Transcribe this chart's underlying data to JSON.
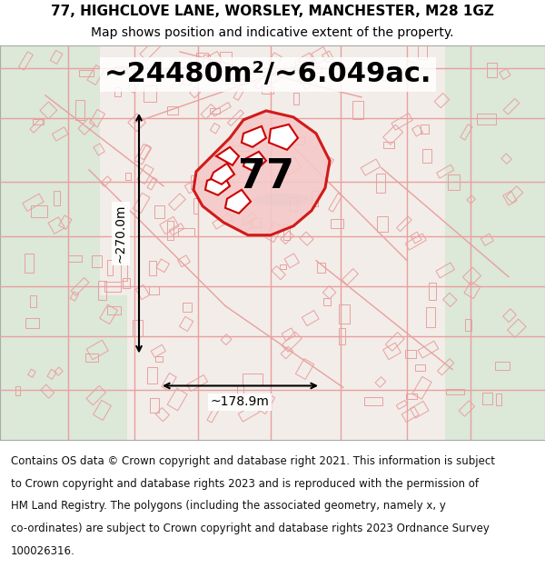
{
  "title_line1": "77, HIGHCLOVE LANE, WORSLEY, MANCHESTER, M28 1GZ",
  "title_line2": "Map shows position and indicative extent of the property.",
  "area_text": "~24480m²/~6.049ac.",
  "dim_vertical": "~270.0m",
  "dim_horizontal": "~178.9m",
  "property_number": "77",
  "footer_lines": [
    "Contains OS data © Crown copyright and database right 2021. This information is subject",
    "to Crown copyright and database rights 2023 and is reproduced with the permission of",
    "HM Land Registry. The polygons (including the associated geometry, namely x, y",
    "co-ordinates) are subject to Crown copyright and database rights 2023 Ordnance Survey",
    "100026316."
  ],
  "bg_color": "#ffffff",
  "map_bg": "#f2ede8",
  "title_fontsize": 11,
  "subtitle_fontsize": 10,
  "area_fontsize": 22,
  "dim_fontsize": 10,
  "property_num_fontsize": 32,
  "footer_fontsize": 8.5,
  "highlight_color": "#cc0000",
  "road_color": "#e8a0a0",
  "green_color": "#dce8d8",
  "water_color": "#c8dce8"
}
